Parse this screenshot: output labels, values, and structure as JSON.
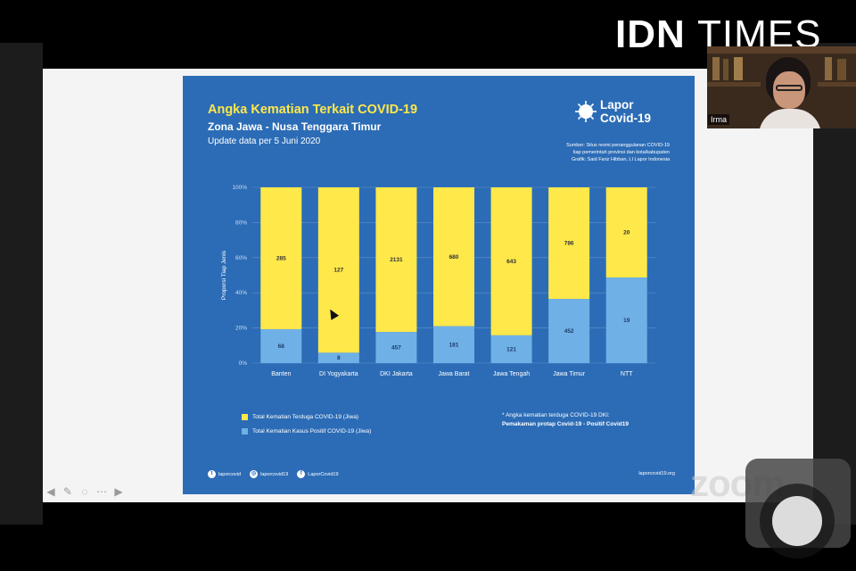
{
  "brand": {
    "part1": "IDN",
    "part2": "TIMES"
  },
  "webcam": {
    "name": "Irma"
  },
  "slide": {
    "title": "Angka Kematian Terkait COVID-19",
    "subtitle": "Zona Jawa - Nusa Tenggara Timur",
    "update": "Update data per 5 Juni 2020",
    "logo_line1": "Lapor",
    "logo_line2": "Covid-19",
    "source_line1": "Sumber: Situs resmi penanggulanan COVID-19",
    "source_line2": "tiap pemerintah provinsi dan kota/kabupaten",
    "source_line3": "Grafik: Said Fariz Hibban, LI Lapor Indonesia",
    "note_line1": "* Angka kematian terduga COVID-19 DKI:",
    "note_line2": "Pemakaman protap Covid-19 - Positif Covid19",
    "footer": {
      "twitter": "laporcovid",
      "instagram": "laporcovid19",
      "facebook": "LaporCovid19",
      "site": "laporcovid19.org"
    }
  },
  "colors": {
    "suspected": "#ffe84a",
    "positive": "#6fb0e6",
    "slide_bg": "#2c6cb6",
    "accent": "#ffe84a"
  },
  "toolbar_icons": [
    "arrow-left-icon",
    "pen-icon",
    "chat-icon",
    "more-icon",
    "arrow-right-icon"
  ],
  "zoom_watermark": "zoom",
  "chart_data": {
    "type": "bar",
    "stacked": "percent",
    "categories": [
      "Banten",
      "DI Yogyakarta",
      "DKI Jakarta",
      "Jawa Barat",
      "Jawa Tengah",
      "Jawa Timur",
      "NTT"
    ],
    "series": [
      {
        "name": "Total Kematian Kasus Positif COVID-19 (Jiwa)",
        "values": [
          68,
          8,
          457,
          181,
          121,
          452,
          19
        ]
      },
      {
        "name": "Total Kematian Terduga COVID-19 (Jiwa)",
        "values": [
          285,
          127,
          2131,
          680,
          643,
          786,
          20
        ]
      }
    ],
    "display_share_pct": [
      {
        "positive": 19.3,
        "suspected": 80.7
      },
      {
        "positive": 5.9,
        "suspected": 94.1
      },
      {
        "positive": 17.7,
        "suspected": 82.3
      },
      {
        "positive": 21.0,
        "suspected": 79.0
      },
      {
        "positive": 15.8,
        "suspected": 84.2
      },
      {
        "positive": 36.5,
        "suspected": 63.5
      },
      {
        "positive": 48.7,
        "suspected": 51.3
      }
    ],
    "ylabel": "Proporsi Tiap Jenis",
    "yticks": [
      "0%",
      "20%",
      "40%",
      "60%",
      "80%",
      "100%"
    ],
    "ylim": [
      0,
      100
    ],
    "legend_position": "bottom-left",
    "grid": true
  }
}
